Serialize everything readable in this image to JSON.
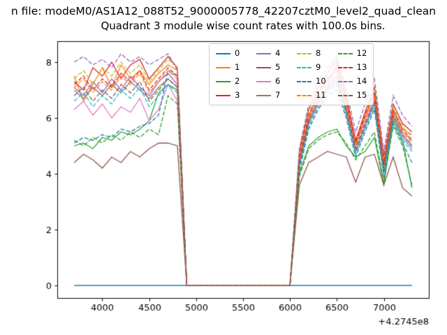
{
  "chart_data": {
    "type": "line",
    "suptitle": "n file: modeM0/AS1A12_088T52_9000005778_42207cztM0_level2_quad_clean",
    "title": "Quadrant 3 module wise count rates with 100.0s bins.",
    "xlabel": "",
    "ylabel": "",
    "x_offset_label": "+4.2745e8",
    "xticks": [
      4000,
      4500,
      5000,
      5500,
      6000,
      6500,
      7000
    ],
    "yticks": [
      0,
      2,
      4,
      6,
      8
    ],
    "xlim": [
      3520,
      7480
    ],
    "ylim": [
      -0.45,
      8.75
    ],
    "grid": false,
    "legend_position": "upper center",
    "x": [
      3700,
      3800,
      3900,
      4000,
      4100,
      4200,
      4300,
      4400,
      4500,
      4600,
      4700,
      4800,
      4900,
      5000,
      5100,
      5200,
      5300,
      5400,
      5500,
      5600,
      5700,
      5800,
      5900,
      6000,
      6100,
      6200,
      6300,
      6400,
      6500,
      6600,
      6700,
      6800,
      6900,
      7000,
      7100,
      7200,
      7300
    ],
    "series": [
      {
        "name": "0",
        "color": "#1f77b4",
        "dashed": false,
        "values": [
          0,
          0,
          0,
          0,
          0,
          0,
          0,
          0,
          0,
          0,
          0,
          0,
          0,
          0,
          0,
          0,
          0,
          0,
          0,
          0,
          0,
          0,
          0,
          0,
          0,
          0,
          0,
          0,
          0,
          0,
          0,
          0,
          0,
          0,
          0,
          0,
          0
        ]
      },
      {
        "name": "1",
        "color": "#ff7f0e",
        "dashed": false,
        "values": [
          7.5,
          6.6,
          7.2,
          7.8,
          7.1,
          7.9,
          7.4,
          7.7,
          7.2,
          7.6,
          7.9,
          7.7,
          0,
          0,
          0,
          0,
          0,
          0,
          0,
          0,
          0,
          0,
          0,
          0,
          4.6,
          6.0,
          6.9,
          7.3,
          7.9,
          6.6,
          5.0,
          6.0,
          6.9,
          4.4,
          6.3,
          5.6,
          5.4
        ]
      },
      {
        "name": "2",
        "color": "#2ca02c",
        "dashed": false,
        "values": [
          5.0,
          5.1,
          4.9,
          5.3,
          5.2,
          5.5,
          5.4,
          5.6,
          5.9,
          6.9,
          7.2,
          7.0,
          0,
          0,
          0,
          0,
          0,
          0,
          0,
          0,
          0,
          0,
          0,
          0,
          4.0,
          5.0,
          5.3,
          5.5,
          5.6,
          5.0,
          4.6,
          4.8,
          5.3,
          3.6,
          5.9,
          5.2,
          3.5
        ]
      },
      {
        "name": "3",
        "color": "#d62728",
        "dashed": false,
        "values": [
          7.3,
          7.0,
          7.8,
          7.5,
          8.0,
          7.4,
          7.9,
          8.1,
          7.4,
          7.8,
          8.2,
          7.8,
          0,
          0,
          0,
          0,
          0,
          0,
          0,
          0,
          0,
          0,
          0,
          0,
          4.8,
          6.3,
          7.1,
          7.6,
          8.1,
          6.8,
          5.2,
          6.2,
          7.1,
          4.6,
          6.5,
          5.8,
          5.5
        ]
      },
      {
        "name": "4",
        "color": "#9467bd",
        "dashed": false,
        "values": [
          7.1,
          6.8,
          7.3,
          6.9,
          7.4,
          7.0,
          7.5,
          7.1,
          6.8,
          7.3,
          7.6,
          7.2,
          0,
          0,
          0,
          0,
          0,
          0,
          0,
          0,
          0,
          0,
          0,
          0,
          4.4,
          5.9,
          6.6,
          7.1,
          7.5,
          6.3,
          4.8,
          5.7,
          6.6,
          4.2,
          6.1,
          5.4,
          5.0
        ]
      },
      {
        "name": "5",
        "color": "#8c564b",
        "dashed": false,
        "values": [
          4.4,
          4.7,
          4.5,
          4.2,
          4.6,
          4.4,
          4.8,
          4.6,
          4.9,
          5.1,
          5.1,
          5.0,
          0,
          0,
          0,
          0,
          0,
          0,
          0,
          0,
          0,
          0,
          0,
          0,
          3.6,
          4.4,
          4.6,
          4.8,
          4.7,
          4.6,
          3.7,
          4.6,
          4.7,
          3.6,
          4.6,
          3.5,
          3.2
        ]
      },
      {
        "name": "6",
        "color": "#e377c2",
        "dashed": false,
        "values": [
          6.3,
          6.6,
          6.1,
          6.5,
          6.0,
          6.4,
          6.2,
          6.7,
          5.9,
          6.3,
          7.2,
          6.6,
          0,
          0,
          0,
          0,
          0,
          0,
          0,
          0,
          0,
          0,
          0,
          0,
          4.3,
          5.8,
          6.5,
          7.1,
          8.0,
          6.4,
          5.0,
          5.9,
          6.7,
          4.3,
          6.2,
          5.5,
          5.2
        ]
      },
      {
        "name": "7",
        "color": "#7f7f7f",
        "dashed": false,
        "values": [
          7.0,
          6.7,
          7.1,
          6.8,
          7.2,
          6.9,
          7.3,
          7.0,
          6.7,
          7.1,
          7.4,
          7.1,
          0,
          0,
          0,
          0,
          0,
          0,
          0,
          0,
          0,
          0,
          0,
          0,
          4.3,
          5.8,
          6.5,
          7.0,
          7.3,
          6.2,
          4.8,
          5.7,
          6.5,
          4.1,
          6.0,
          5.3,
          4.9
        ]
      },
      {
        "name": "8",
        "color": "#bcbd22",
        "dashed": true,
        "values": [
          7.4,
          7.7,
          7.2,
          7.8,
          7.5,
          8.0,
          7.6,
          7.9,
          7.3,
          7.7,
          8.1,
          7.8,
          0,
          0,
          0,
          0,
          0,
          0,
          0,
          0,
          0,
          0,
          0,
          0,
          4.7,
          6.1,
          7.0,
          7.4,
          7.8,
          6.6,
          5.1,
          6.1,
          7.0,
          4.5,
          6.4,
          5.7,
          5.3
        ]
      },
      {
        "name": "9",
        "color": "#17becf",
        "dashed": true,
        "values": [
          6.6,
          6.9,
          6.4,
          6.8,
          6.5,
          7.0,
          6.7,
          7.1,
          6.4,
          6.8,
          7.2,
          6.9,
          0,
          0,
          0,
          0,
          0,
          0,
          0,
          0,
          0,
          0,
          0,
          0,
          4.2,
          5.7,
          6.4,
          6.9,
          7.2,
          6.1,
          4.7,
          5.6,
          6.4,
          4.0,
          5.9,
          5.2,
          4.8
        ]
      },
      {
        "name": "10",
        "color": "#1f77b4",
        "dashed": true,
        "values": [
          5.1,
          5.3,
          5.2,
          5.4,
          5.3,
          5.6,
          5.5,
          5.7,
          5.8,
          6.1,
          7.7,
          7.5,
          0,
          0,
          0,
          0,
          0,
          0,
          0,
          0,
          0,
          0,
          0,
          0,
          4.1,
          5.6,
          6.3,
          6.8,
          7.0,
          6.0,
          4.6,
          5.5,
          6.3,
          3.9,
          5.8,
          5.1,
          4.4
        ]
      },
      {
        "name": "11",
        "color": "#ff7f0e",
        "dashed": true,
        "values": [
          7.1,
          7.4,
          6.9,
          7.3,
          7.0,
          7.5,
          7.2,
          7.6,
          6.9,
          7.3,
          7.7,
          7.4,
          0,
          0,
          0,
          0,
          0,
          0,
          0,
          0,
          0,
          0,
          0,
          0,
          4.5,
          6.0,
          6.8,
          7.2,
          7.7,
          6.5,
          5.0,
          6.0,
          6.8,
          4.3,
          6.2,
          5.5,
          5.1
        ]
      },
      {
        "name": "12",
        "color": "#2ca02c",
        "dashed": true,
        "values": [
          5.2,
          5.0,
          5.3,
          5.1,
          5.4,
          5.2,
          5.5,
          5.3,
          5.6,
          5.4,
          6.8,
          6.5,
          0,
          0,
          0,
          0,
          0,
          0,
          0,
          0,
          0,
          0,
          0,
          0,
          3.9,
          4.9,
          5.2,
          5.4,
          5.5,
          5.1,
          4.5,
          5.0,
          5.5,
          3.7,
          5.7,
          5.0,
          3.6
        ]
      },
      {
        "name": "13",
        "color": "#d62728",
        "dashed": true,
        "values": [
          7.2,
          7.5,
          7.0,
          7.4,
          7.1,
          7.6,
          7.3,
          7.7,
          7.0,
          7.4,
          7.8,
          7.5,
          0,
          0,
          0,
          0,
          0,
          0,
          0,
          0,
          0,
          0,
          0,
          0,
          4.6,
          6.1,
          6.9,
          7.4,
          7.8,
          6.6,
          5.1,
          6.1,
          6.9,
          4.4,
          6.3,
          5.6,
          5.2
        ]
      },
      {
        "name": "14",
        "color": "#9467bd",
        "dashed": true,
        "values": [
          8.0,
          8.2,
          7.9,
          8.1,
          7.8,
          8.3,
          8.0,
          8.2,
          7.9,
          8.1,
          8.3,
          7.7,
          0,
          0,
          0,
          0,
          0,
          0,
          0,
          0,
          0,
          0,
          0,
          0,
          4.9,
          6.5,
          7.3,
          7.8,
          8.2,
          7.0,
          5.5,
          6.5,
          7.4,
          4.8,
          6.8,
          6.1,
          5.7
        ]
      },
      {
        "name": "15",
        "color": "#8c564b",
        "dashed": true,
        "values": [
          6.8,
          7.1,
          6.6,
          7.0,
          6.7,
          7.2,
          6.9,
          7.3,
          6.6,
          7.0,
          7.4,
          7.1,
          0,
          0,
          0,
          0,
          0,
          0,
          0,
          0,
          0,
          0,
          0,
          0,
          4.4,
          5.9,
          6.7,
          7.1,
          7.4,
          6.3,
          4.9,
          5.8,
          6.6,
          4.2,
          6.1,
          5.4,
          5.0
        ]
      }
    ]
  }
}
